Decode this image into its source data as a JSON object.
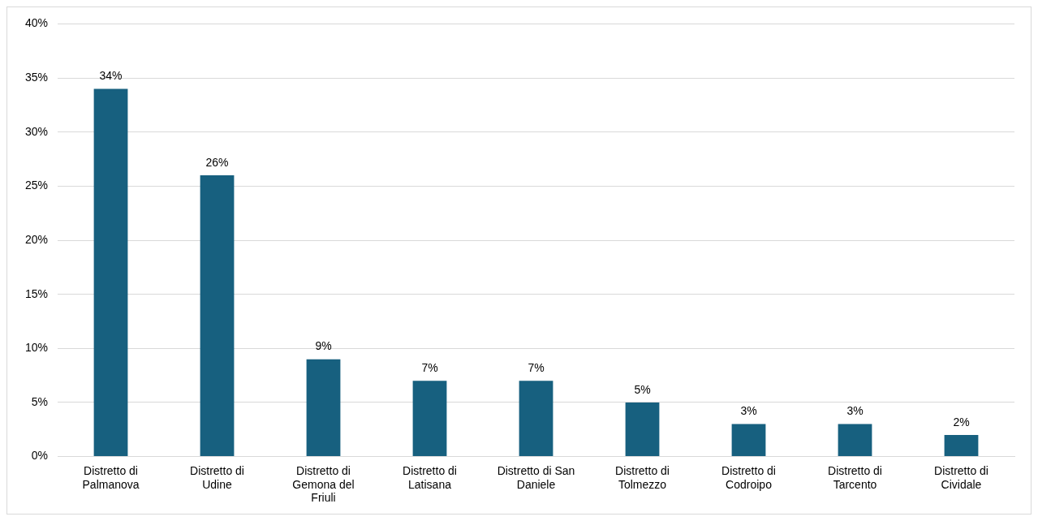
{
  "chart_data": {
    "type": "bar",
    "categories": [
      "Distretto di Palmanova",
      "Distretto di Udine",
      "Distretto di Gemona del Friuli",
      "Distretto di Latisana",
      "Distretto di San Daniele",
      "Distretto di Tolmezzo",
      "Distretto di Codroipo",
      "Distretto di Tarcento",
      "Distretto di Cividale"
    ],
    "values": [
      34,
      26,
      9,
      7,
      7,
      5,
      3,
      3,
      2
    ],
    "value_labels": [
      "34%",
      "26%",
      "9%",
      "7%",
      "7%",
      "5%",
      "3%",
      "3%",
      "2%"
    ],
    "color": "#17607f",
    "ylim": [
      0,
      40
    ],
    "yticks": [
      {
        "value": 0,
        "label": "0%"
      },
      {
        "value": 5,
        "label": "5%"
      },
      {
        "value": 10,
        "label": "10%"
      },
      {
        "value": 15,
        "label": "15%"
      },
      {
        "value": 20,
        "label": "20%"
      },
      {
        "value": 25,
        "label": "25%"
      },
      {
        "value": 30,
        "label": "30%"
      },
      {
        "value": 35,
        "label": "35%"
      },
      {
        "value": 40,
        "label": "40%"
      }
    ],
    "grid": "y",
    "legend": false
  }
}
